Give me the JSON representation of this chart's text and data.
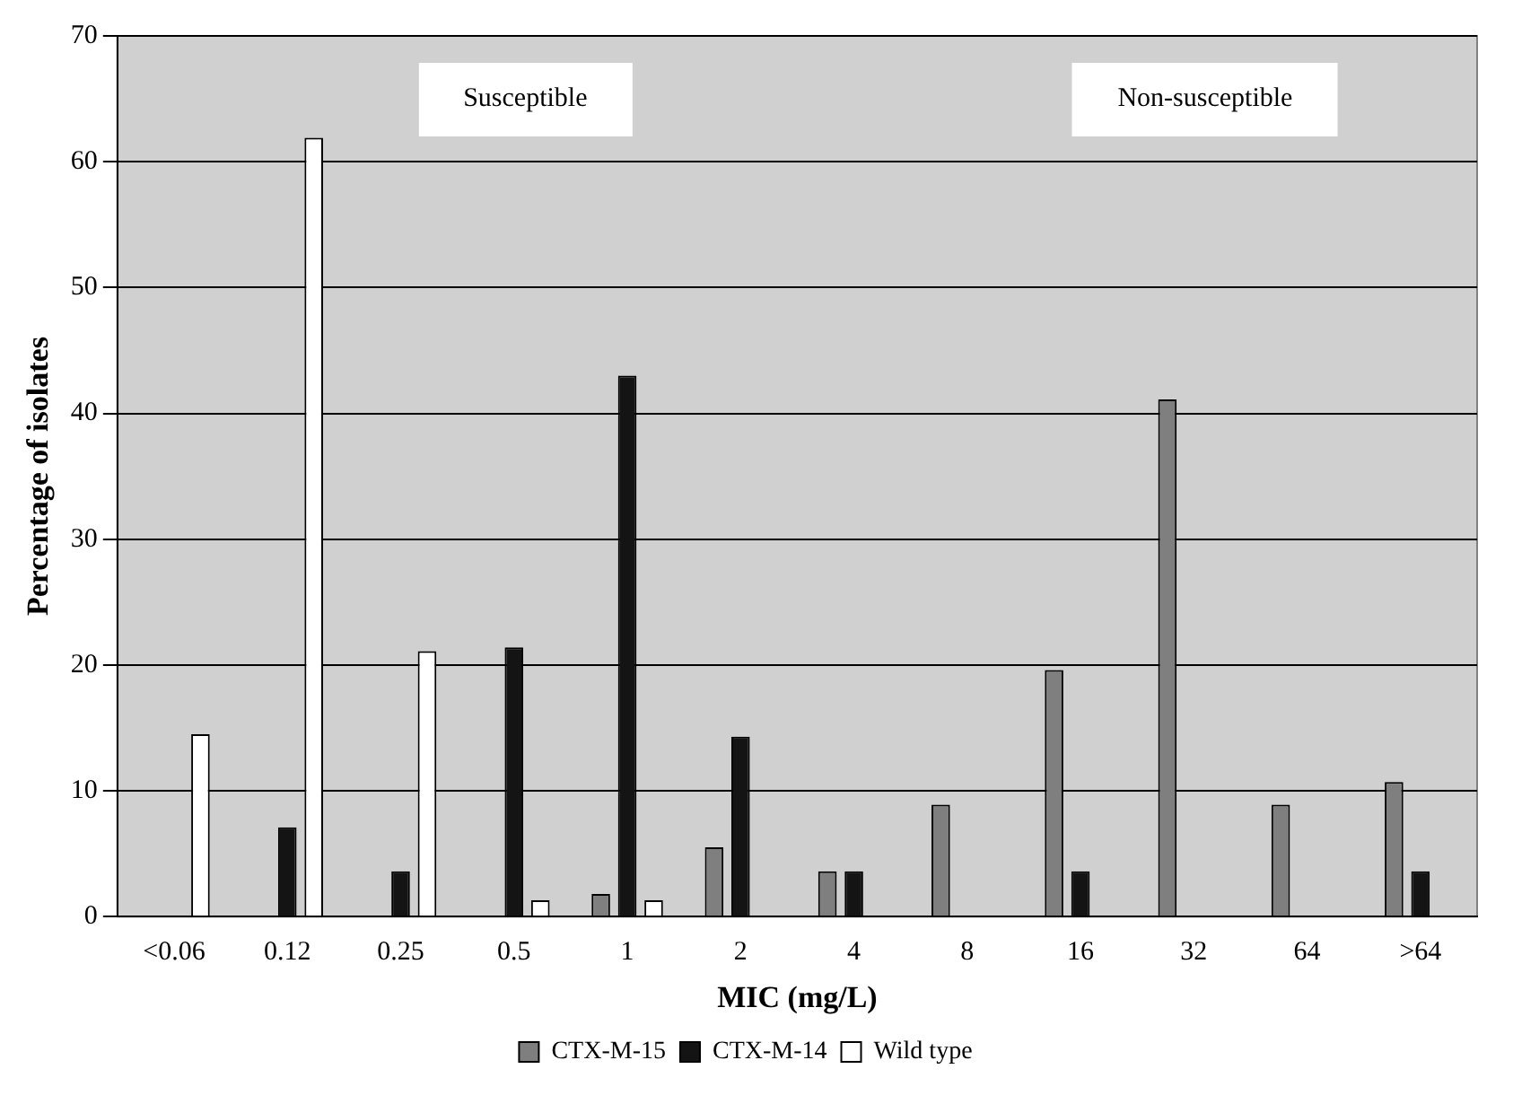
{
  "chart_data": {
    "type": "bar",
    "xlabel": "MIC (mg/L)",
    "ylabel": "Percentage of isolates",
    "categories": [
      "<0.06",
      "0.12",
      "0.25",
      "0.5",
      "1",
      "2",
      "4",
      "8",
      "16",
      "32",
      "64",
      ">64"
    ],
    "series": [
      {
        "name": "CTX-M-15",
        "color": "#7f7f7f",
        "values": [
          0,
          0,
          0,
          0,
          1.8,
          5.5,
          3.6,
          8.9,
          19.6,
          41.1,
          8.9,
          10.7
        ]
      },
      {
        "name": "CTX-M-14",
        "color": "#141414",
        "values": [
          0,
          7.1,
          3.6,
          21.4,
          43.0,
          14.3,
          3.6,
          0,
          3.6,
          0,
          0,
          3.6
        ]
      },
      {
        "name": "Wild type",
        "color": "#ffffff",
        "values": [
          14.5,
          61.9,
          21.1,
          1.3,
          1.3,
          0,
          0,
          0,
          0,
          0,
          0,
          0
        ]
      }
    ],
    "ylim": [
      0,
      70
    ],
    "yticks": [
      0,
      10,
      20,
      30,
      40,
      50,
      60,
      70
    ],
    "grid": "y",
    "legend": "bottom",
    "annotations": [
      "Susceptible",
      "Non-susceptible"
    ]
  }
}
